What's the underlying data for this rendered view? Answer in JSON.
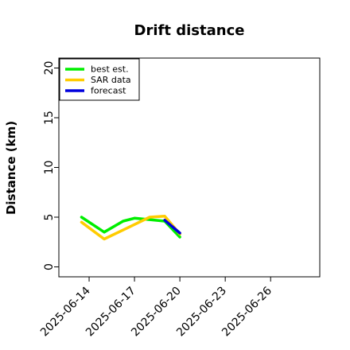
{
  "chart_data": {
    "type": "line",
    "title": "Drift distance",
    "xlabel": "",
    "ylabel": "Distance (km)",
    "ylim": [
      -1,
      21
    ],
    "xlim": [
      "2025-06-12T00:00",
      "2025-06-29T06:00"
    ],
    "yticks": [
      0,
      5,
      10,
      15,
      20
    ],
    "xticks": [
      "2025-06-14",
      "2025-06-17",
      "2025-06-20",
      "2025-06-23",
      "2025-06-26"
    ],
    "grid": false,
    "legend": "top-left",
    "series": [
      {
        "name": "best est.",
        "color": "#00ee00",
        "points": [
          {
            "x": "2025-06-13T12:00",
            "y": 5.0
          },
          {
            "x": "2025-06-15T00:00",
            "y": 3.5
          },
          {
            "x": "2025-06-16T06:00",
            "y": 4.6
          },
          {
            "x": "2025-06-17T00:00",
            "y": 4.9
          },
          {
            "x": "2025-06-19T00:00",
            "y": 4.6
          },
          {
            "x": "2025-06-20T00:00",
            "y": 3.0
          }
        ]
      },
      {
        "name": "SAR data",
        "color": "#ffcc00",
        "points": [
          {
            "x": "2025-06-13T12:00",
            "y": 4.5
          },
          {
            "x": "2025-06-15T00:00",
            "y": 2.8
          },
          {
            "x": "2025-06-16T12:00",
            "y": 3.9
          },
          {
            "x": "2025-06-18T00:00",
            "y": 5.0
          },
          {
            "x": "2025-06-19T00:00",
            "y": 5.1
          },
          {
            "x": "2025-06-20T00:00",
            "y": 3.3
          }
        ]
      },
      {
        "name": "forecast",
        "color": "#0000dd",
        "points": [
          {
            "x": "2025-06-19T00:00",
            "y": 4.7
          },
          {
            "x": "2025-06-20T00:00",
            "y": 3.4
          }
        ]
      }
    ]
  }
}
